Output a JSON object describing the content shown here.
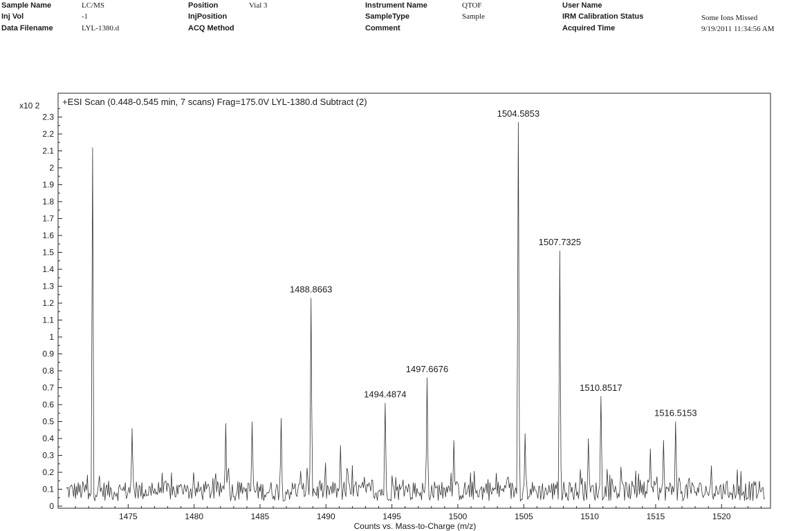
{
  "header": {
    "sample_name_label": "Sample Name",
    "sample_name_value": "LC/MS",
    "inj_vol_label": "Inj Vol",
    "inj_vol_value": "-1",
    "data_filename_label": "Data Filename",
    "data_filename_value": "LYL-1380.d",
    "position_label": "Position",
    "position_value": "Vial 3",
    "injposition_label": "InjPosition",
    "acq_method_label": "ACQ Method",
    "instrument_name_label": "Instrument Name",
    "instrument_name_value": "QTOF",
    "sampletype_label": "SampleType",
    "sampletype_value": "Sample",
    "comment_label": "Comment",
    "user_name_label": "User Name",
    "irm_label": "IRM Calibration Status",
    "irm_value": "Some Ions Missed",
    "acquired_time_label": "Acquired Time",
    "acquired_time_value": "9/19/2011 11:34:56 AM"
  },
  "chart_data": {
    "type": "line",
    "title": "+ESI Scan (0.448-0.545 min, 7 scans) Frag=175.0V LYL-1380.d  Subtract (2)",
    "y_multiplier_label": "x10 2",
    "xlabel": "Counts vs. Mass-to-Charge (m/z)",
    "xlim": [
      1470.0,
      1523.5
    ],
    "ylim": [
      0,
      2.4
    ],
    "x_ticks": [
      1475,
      1480,
      1485,
      1490,
      1495,
      1500,
      1505,
      1510,
      1515,
      1520
    ],
    "y_ticks": [
      0,
      0.1,
      0.2,
      0.3,
      0.4,
      0.5,
      0.6,
      0.7,
      0.8,
      0.9,
      1,
      1.1,
      1.2,
      1.3,
      1.4,
      1.5,
      1.6,
      1.7,
      1.8,
      1.9,
      2,
      2.1,
      2.2,
      2.3
    ],
    "peaks": [
      {
        "x": 1472.3,
        "y": 2.12
      },
      {
        "x": 1475.3,
        "y": 0.46
      },
      {
        "x": 1482.4,
        "y": 0.49
      },
      {
        "x": 1484.4,
        "y": 0.5
      },
      {
        "x": 1486.6,
        "y": 0.52
      },
      {
        "x": 1488.8663,
        "y": 1.23
      },
      {
        "x": 1491.1,
        "y": 0.36
      },
      {
        "x": 1494.4874,
        "y": 0.61
      },
      {
        "x": 1497.6676,
        "y": 0.76
      },
      {
        "x": 1499.7,
        "y": 0.39
      },
      {
        "x": 1504.5853,
        "y": 2.27
      },
      {
        "x": 1505.1,
        "y": 0.43
      },
      {
        "x": 1507.7325,
        "y": 1.51
      },
      {
        "x": 1509.9,
        "y": 0.4
      },
      {
        "x": 1510.8517,
        "y": 0.65
      },
      {
        "x": 1514.6,
        "y": 0.34
      },
      {
        "x": 1515.6,
        "y": 0.39
      },
      {
        "x": 1516.5153,
        "y": 0.5
      }
    ],
    "peak_labels": [
      {
        "x": 1488.8663,
        "y": 1.23,
        "text": "1488.8663"
      },
      {
        "x": 1494.4874,
        "y": 0.61,
        "text": "1494.4874"
      },
      {
        "x": 1497.6676,
        "y": 0.76,
        "text": "1497.6676"
      },
      {
        "x": 1504.5853,
        "y": 2.27,
        "text": "1504.5853"
      },
      {
        "x": 1507.7325,
        "y": 1.51,
        "text": "1507.7325"
      },
      {
        "x": 1510.8517,
        "y": 0.65,
        "text": "1510.8517"
      },
      {
        "x": 1516.5153,
        "y": 0.5,
        "text": "1516.5153"
      }
    ],
    "grid": false
  }
}
